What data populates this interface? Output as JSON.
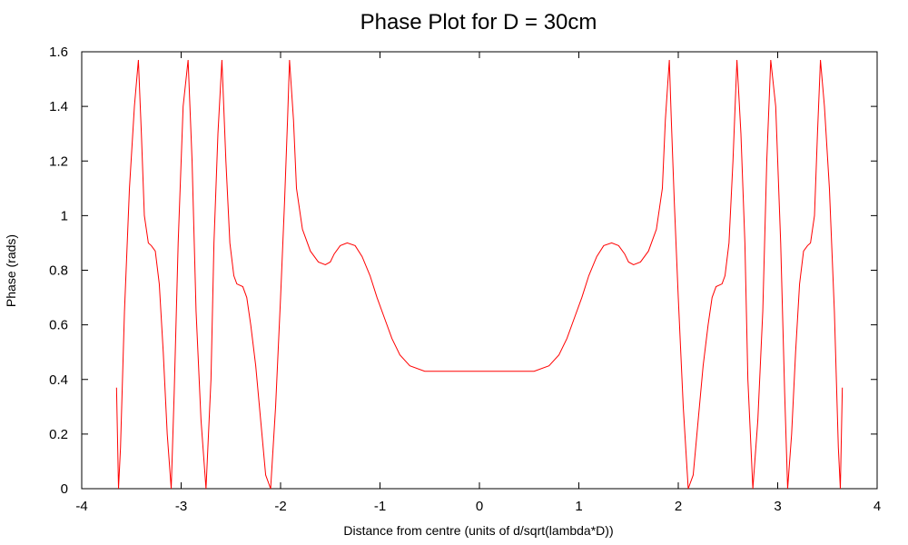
{
  "chart_data": {
    "type": "line",
    "title": "Phase Plot for D = 30cm",
    "xlabel": "Distance from centre (units of d/sqrt(lambda*D))",
    "ylabel": "Phase (rads)",
    "xlim": [
      -4,
      4
    ],
    "ylim": [
      0,
      1.6
    ],
    "xticks": [
      -4,
      -3,
      -2,
      -1,
      0,
      1,
      2,
      3,
      4
    ],
    "yticks": [
      0,
      0.2,
      0.4,
      0.6,
      0.8,
      1,
      1.2,
      1.4,
      1.6
    ],
    "xtick_labels": [
      "-4",
      "-3",
      "-2",
      "-1",
      "0",
      "1",
      "2",
      "3",
      "4"
    ],
    "ytick_labels": [
      "0",
      "0.2",
      "0.4",
      "0.6",
      "0.8",
      "1",
      "1.2",
      "1.4",
      "1.6"
    ],
    "grid": false,
    "line_color": "#ff0000",
    "series": [
      {
        "x": [
          -3.65,
          -3.63,
          -3.61,
          -3.57,
          -3.52,
          -3.47,
          -3.43,
          -3.4,
          -3.37,
          -3.33,
          -3.3,
          -3.26,
          -3.22,
          -3.18,
          -3.14,
          -3.1,
          -3.07,
          -3.03,
          -2.98,
          -2.93,
          -2.89,
          -2.85,
          -2.8,
          -2.75,
          -2.7,
          -2.67,
          -2.63,
          -2.59,
          -2.55,
          -2.51,
          -2.47,
          -2.44,
          -2.41,
          -2.38,
          -2.34,
          -2.3,
          -2.25,
          -2.2,
          -2.15,
          -2.1,
          -2.05,
          -2.0,
          -1.96,
          -1.93,
          -1.91,
          -1.87,
          -1.84,
          -1.78,
          -1.7,
          -1.62,
          -1.55,
          -1.5,
          -1.46,
          -1.4,
          -1.33,
          -1.25,
          -1.18,
          -1.1,
          -1.03,
          -0.95,
          -0.88,
          -0.8,
          -0.7,
          -0.55,
          -0.4,
          -0.2,
          0.0,
          0.2,
          0.4,
          0.55,
          0.7,
          0.8,
          0.88,
          0.95,
          1.03,
          1.1,
          1.18,
          1.25,
          1.33,
          1.4,
          1.46,
          1.5,
          1.55,
          1.62,
          1.7,
          1.78,
          1.84,
          1.87,
          1.91,
          1.93,
          1.96,
          2.0,
          2.05,
          2.1,
          2.15,
          2.2,
          2.25,
          2.3,
          2.34,
          2.38,
          2.41,
          2.44,
          2.47,
          2.51,
          2.55,
          2.59,
          2.63,
          2.67,
          2.7,
          2.75,
          2.8,
          2.85,
          2.89,
          2.93,
          2.98,
          3.03,
          3.07,
          3.1,
          3.14,
          3.18,
          3.22,
          3.26,
          3.3,
          3.33,
          3.37,
          3.4,
          3.43,
          3.47,
          3.52,
          3.57,
          3.61,
          3.63,
          3.65
        ],
        "y": [
          0.37,
          0.0,
          0.15,
          0.65,
          1.1,
          1.4,
          1.57,
          1.3,
          1.0,
          0.9,
          0.89,
          0.87,
          0.75,
          0.5,
          0.2,
          0.0,
          0.35,
          0.9,
          1.4,
          1.57,
          1.2,
          0.65,
          0.25,
          0.0,
          0.4,
          0.9,
          1.3,
          1.57,
          1.2,
          0.9,
          0.78,
          0.75,
          0.745,
          0.74,
          0.7,
          0.6,
          0.45,
          0.25,
          0.05,
          0.0,
          0.3,
          0.7,
          1.05,
          1.35,
          1.57,
          1.35,
          1.1,
          0.95,
          0.87,
          0.83,
          0.82,
          0.83,
          0.86,
          0.89,
          0.9,
          0.89,
          0.85,
          0.78,
          0.7,
          0.62,
          0.55,
          0.49,
          0.45,
          0.43,
          0.43,
          0.43,
          0.43,
          0.43,
          0.43,
          0.43,
          0.45,
          0.49,
          0.55,
          0.62,
          0.7,
          0.78,
          0.85,
          0.89,
          0.9,
          0.89,
          0.86,
          0.83,
          0.82,
          0.83,
          0.87,
          0.95,
          1.1,
          1.35,
          1.57,
          1.35,
          1.05,
          0.7,
          0.3,
          0.0,
          0.05,
          0.25,
          0.45,
          0.6,
          0.7,
          0.74,
          0.745,
          0.75,
          0.78,
          0.9,
          1.2,
          1.57,
          1.3,
          0.9,
          0.4,
          0.0,
          0.25,
          0.65,
          1.2,
          1.57,
          1.4,
          0.9,
          0.35,
          0.0,
          0.2,
          0.5,
          0.75,
          0.87,
          0.89,
          0.9,
          1.0,
          1.3,
          1.57,
          1.4,
          1.1,
          0.65,
          0.15,
          0.0,
          0.37
        ]
      }
    ]
  }
}
